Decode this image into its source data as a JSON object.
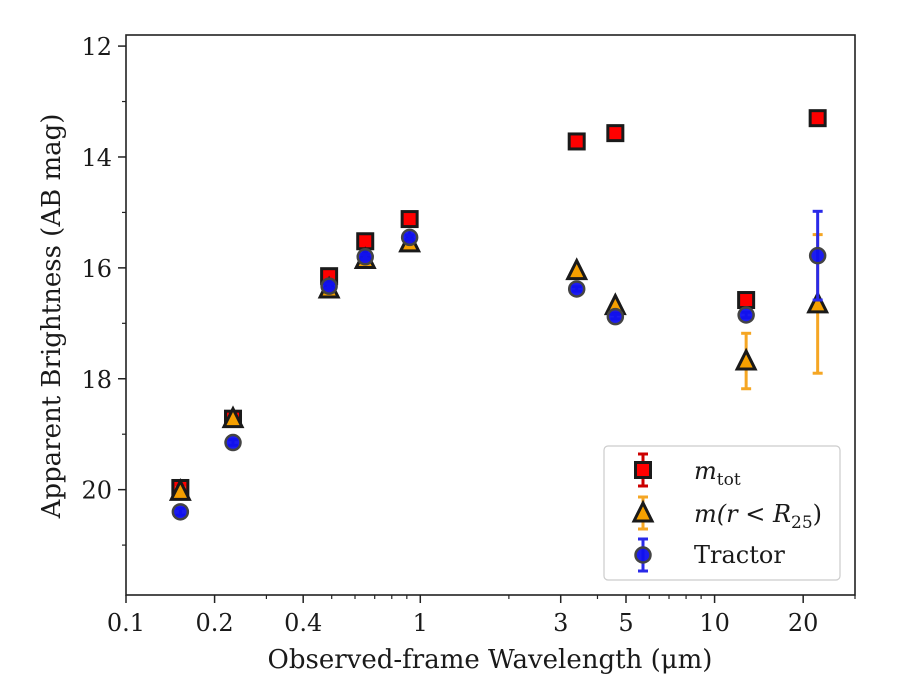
{
  "chart_data": {
    "type": "scatter",
    "xlabel": "Observed-frame Wavelength (μm)",
    "ylabel": "Apparent Brightness (AB mag)",
    "x_scale": "log",
    "xlim": [
      0.1,
      30
    ],
    "ylim": [
      21.9,
      11.8
    ],
    "y_inverted": true,
    "grid": false,
    "legend_position": "bottom-right",
    "x_ticks": [
      {
        "value": 0.1,
        "label": "0.1"
      },
      {
        "value": 0.2,
        "label": "0.2"
      },
      {
        "value": 0.4,
        "label": "0.4"
      },
      {
        "value": 1,
        "label": "1"
      },
      {
        "value": 3,
        "label": "3"
      },
      {
        "value": 5,
        "label": "5"
      },
      {
        "value": 10,
        "label": "10"
      },
      {
        "value": 20,
        "label": "20"
      }
    ],
    "x_minor_ticks": [
      0.3,
      0.5,
      0.6,
      0.7,
      0.8,
      0.9,
      2,
      4,
      6,
      7,
      8,
      9,
      30
    ],
    "y_ticks": [
      {
        "value": 12,
        "label": "12"
      },
      {
        "value": 14,
        "label": "14"
      },
      {
        "value": 16,
        "label": "16"
      },
      {
        "value": 18,
        "label": "18"
      },
      {
        "value": 20,
        "label": "20"
      }
    ],
    "y_minor_ticks": [
      13,
      15,
      17,
      19,
      21
    ],
    "series": [
      {
        "name": "m_tot",
        "legend_main": "m",
        "legend_sub": "tot",
        "marker": "square",
        "color": "#ff0000",
        "edge_color": "#1a1a1a",
        "errbar_color": "#cc0000",
        "points": [
          {
            "x": 0.153,
            "y": 19.97,
            "err": 0.1
          },
          {
            "x": 0.231,
            "y": 18.72,
            "err": 0.05
          },
          {
            "x": 0.49,
            "y": 16.15,
            "err": 0.04
          },
          {
            "x": 0.65,
            "y": 15.52,
            "err": 0.04
          },
          {
            "x": 0.92,
            "y": 15.12,
            "err": 0.04
          },
          {
            "x": 3.4,
            "y": 13.72,
            "err": 0.04
          },
          {
            "x": 4.6,
            "y": 13.57,
            "err": 0.04
          },
          {
            "x": 12.8,
            "y": 16.58,
            "err": 0.06
          },
          {
            "x": 22.4,
            "y": 13.3,
            "err": 0.05
          }
        ]
      },
      {
        "name": "m(r<R25)",
        "legend_text": "m(r < R",
        "legend_sub": "25",
        "legend_close": ")",
        "marker": "triangle",
        "color": "#f5a000",
        "edge_color": "#1a1a1a",
        "errbar_color": "#f5a623",
        "points": [
          {
            "x": 0.153,
            "y": 20.03,
            "err": 0.06
          },
          {
            "x": 0.231,
            "y": 18.72,
            "err": 0.05
          },
          {
            "x": 0.49,
            "y": 16.38,
            "err": 0.04
          },
          {
            "x": 0.65,
            "y": 15.85,
            "err": 0.04
          },
          {
            "x": 0.92,
            "y": 15.55,
            "err": 0.04
          },
          {
            "x": 3.4,
            "y": 16.05,
            "err": 0.04
          },
          {
            "x": 4.6,
            "y": 16.68,
            "err": 0.04
          },
          {
            "x": 12.8,
            "y": 17.68,
            "err": 0.5
          },
          {
            "x": 22.4,
            "y": 16.65,
            "err": 1.25
          }
        ]
      },
      {
        "name": "Tractor",
        "legend_text": "Tractor",
        "marker": "circle",
        "color": "#1010ee",
        "edge_color": "#444444",
        "errbar_color": "#2a2ae8",
        "points": [
          {
            "x": 0.153,
            "y": 20.4,
            "err": 0.06
          },
          {
            "x": 0.231,
            "y": 19.15,
            "err": 0.05
          },
          {
            "x": 0.49,
            "y": 16.33,
            "err": 0.04
          },
          {
            "x": 0.65,
            "y": 15.8,
            "err": 0.04
          },
          {
            "x": 0.92,
            "y": 15.45,
            "err": 0.04
          },
          {
            "x": 3.4,
            "y": 16.38,
            "err": 0.04
          },
          {
            "x": 4.6,
            "y": 16.88,
            "err": 0.04
          },
          {
            "x": 12.8,
            "y": 16.85,
            "err": 0.05
          },
          {
            "x": 22.4,
            "y": 15.78,
            "err": 0.8
          }
        ]
      }
    ]
  }
}
